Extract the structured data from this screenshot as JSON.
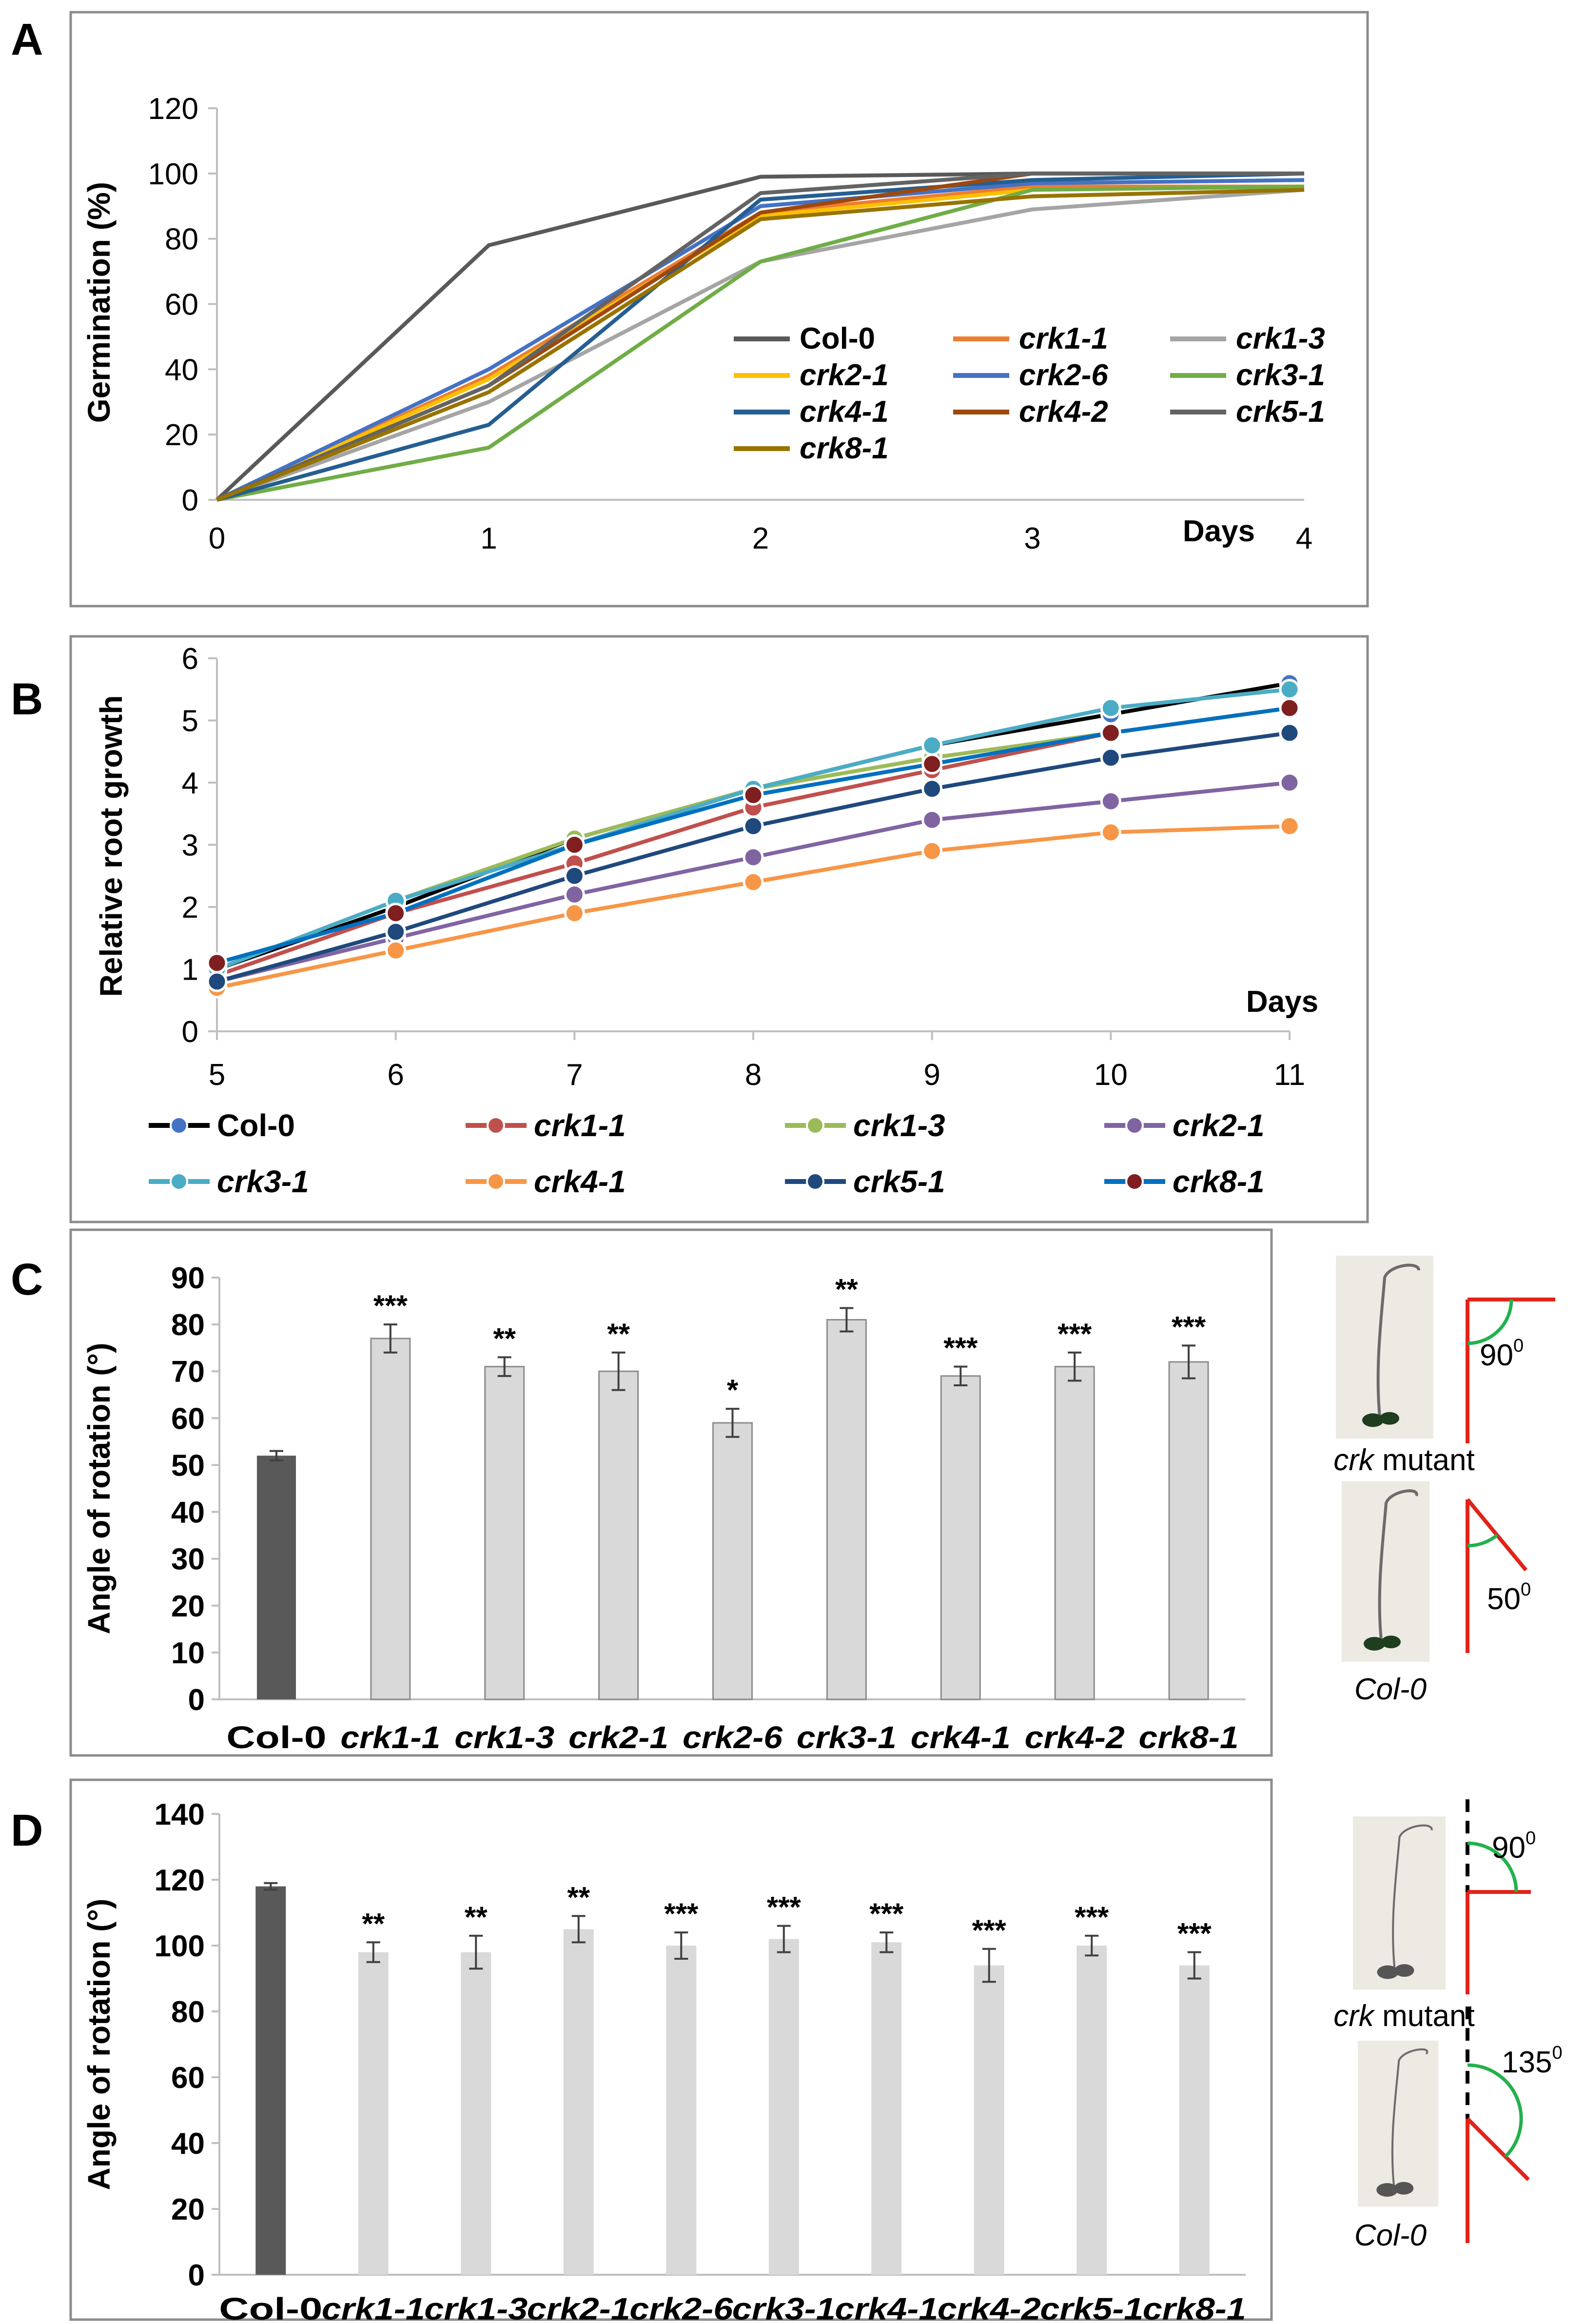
{
  "figure": {
    "panels": [
      "A",
      "B",
      "C",
      "D"
    ]
  },
  "colors": {
    "panel_border": "#8c8c8c",
    "axis": "#bfbfbf",
    "dark_bar": "#595959",
    "light_bar": "#d9d9d9",
    "red_line": "#e2231a",
    "green_arc": "#22b14c",
    "seedling_bg": "#ede9e3"
  },
  "chart_data": [
    {
      "panel": "A",
      "type": "line",
      "ylabel": "Germination (%)",
      "xlabel": "Days",
      "xlim": [
        0,
        4
      ],
      "ylim": [
        0,
        120
      ],
      "x_ticks": [
        "0",
        "1",
        "2",
        "3",
        "4"
      ],
      "y_ticks": [
        "0",
        "20",
        "40",
        "60",
        "80",
        "100",
        "120"
      ],
      "x": [
        0,
        1,
        2,
        3,
        4
      ],
      "legend_position": "inside-lower-right",
      "series": [
        {
          "name": "Col-0",
          "color": "#595959",
          "values": [
            0,
            78,
            99,
            100,
            100
          ]
        },
        {
          "name": "crk1-1",
          "color": "#ed7d31",
          "values": [
            0,
            38,
            88,
            96,
            96
          ]
        },
        {
          "name": "crk1-3",
          "color": "#a5a5a5",
          "values": [
            0,
            30,
            73,
            89,
            95
          ]
        },
        {
          "name": "crk2-1",
          "color": "#ffc000",
          "values": [
            0,
            37,
            87,
            95,
            96
          ]
        },
        {
          "name": "crk2-6",
          "color": "#4472c4",
          "values": [
            0,
            40,
            90,
            97,
            98
          ]
        },
        {
          "name": "crk3-1",
          "color": "#70ad47",
          "values": [
            0,
            16,
            73,
            95,
            96
          ]
        },
        {
          "name": "crk4-1",
          "color": "#255e91",
          "values": [
            0,
            23,
            92,
            98,
            100
          ]
        },
        {
          "name": "crk4-2",
          "color": "#9e480e",
          "values": [
            0,
            35,
            88,
            100,
            100
          ]
        },
        {
          "name": "crk5-1",
          "color": "#636363",
          "values": [
            0,
            35,
            94,
            100,
            100
          ]
        },
        {
          "name": "crk8-1",
          "color": "#997300",
          "values": [
            0,
            33,
            86,
            93,
            95
          ]
        }
      ]
    },
    {
      "panel": "B",
      "type": "line",
      "ylabel": "Relative root growth",
      "xlabel": "Days",
      "xlim": [
        5,
        11
      ],
      "ylim": [
        0,
        6
      ],
      "x_ticks": [
        "5",
        "6",
        "7",
        "8",
        "9",
        "10",
        "11"
      ],
      "y_ticks": [
        "0",
        "1",
        "2",
        "3",
        "4",
        "5",
        "6"
      ],
      "x": [
        5,
        6,
        7,
        8,
        9,
        10,
        11
      ],
      "legend_position": "bottom",
      "series": [
        {
          "name": "Col-0",
          "color": "#000000",
          "marker": "#4472c4",
          "values": [
            1.0,
            2.0,
            3.1,
            3.9,
            4.6,
            5.1,
            5.6
          ]
        },
        {
          "name": "crk1-1",
          "color": "#c0504d",
          "marker": "#c0504d",
          "values": [
            0.9,
            1.9,
            2.7,
            3.6,
            4.2,
            4.8,
            5.2
          ]
        },
        {
          "name": "crk1-3",
          "color": "#9bbb59",
          "marker": "#9bbb59",
          "values": [
            1.0,
            2.1,
            3.1,
            3.9,
            4.4,
            4.8,
            5.2
          ]
        },
        {
          "name": "crk2-1",
          "color": "#8064a2",
          "marker": "#8064a2",
          "values": [
            0.8,
            1.5,
            2.2,
            2.8,
            3.4,
            3.7,
            4.0
          ]
        },
        {
          "name": "crk3-1",
          "color": "#4bacc6",
          "marker": "#4bacc6",
          "values": [
            1.0,
            2.1,
            3.0,
            3.9,
            4.6,
            5.2,
            5.5
          ]
        },
        {
          "name": "crk4-1",
          "color": "#f79646",
          "marker": "#f79646",
          "values": [
            0.7,
            1.3,
            1.9,
            2.4,
            2.9,
            3.2,
            3.3
          ]
        },
        {
          "name": "crk5-1",
          "color": "#1f497d",
          "marker": "#1f497d",
          "values": [
            0.8,
            1.6,
            2.5,
            3.3,
            3.9,
            4.4,
            4.8
          ]
        },
        {
          "name": "crk8-1",
          "color": "#0070c0",
          "marker": "#7f1f1f",
          "values": [
            1.1,
            1.9,
            3.0,
            3.8,
            4.3,
            4.8,
            5.2
          ]
        }
      ]
    },
    {
      "panel": "C",
      "type": "bar",
      "ylabel": "Angle of rotation (°)",
      "ylim": [
        0,
        90
      ],
      "y_ticks": [
        "0",
        "10",
        "20",
        "30",
        "40",
        "50",
        "60",
        "70",
        "80",
        "90"
      ],
      "categories": [
        "Col-0",
        "crk1-1",
        "crk1-3",
        "crk2-1",
        "crk2-6",
        "crk3-1",
        "crk4-1",
        "crk4-2",
        "crk8-1"
      ],
      "values": [
        52,
        77,
        71,
        70,
        59,
        81,
        69,
        71,
        72
      ],
      "errors": [
        1,
        3,
        2,
        4,
        3,
        2.5,
        2,
        3,
        3.5
      ],
      "significance": [
        "",
        "***",
        "**",
        "**",
        "*",
        "**",
        "***",
        "***",
        "***"
      ],
      "inset": {
        "mutant_label_italic": "crk",
        "mutant_label_rest": " mutant",
        "wt_label": "Col-0",
        "mutant_angle": "90",
        "wt_angle": "50",
        "degree_mark": "0"
      }
    },
    {
      "panel": "D",
      "type": "bar",
      "ylabel": "Angle of rotation (°)",
      "ylim": [
        0,
        140
      ],
      "y_ticks": [
        "0",
        "20",
        "40",
        "60",
        "80",
        "100",
        "120",
        "140"
      ],
      "categories": [
        "Col-0",
        "crk1-1",
        "crk1-3",
        "crk2-1",
        "crk2-6",
        "crk3-1",
        "crk4-1",
        "crk4-2",
        "crk5-1",
        "crk8-1"
      ],
      "values": [
        118,
        98,
        98,
        105,
        100,
        102,
        101,
        94,
        100,
        94
      ],
      "errors": [
        1,
        3,
        5,
        4,
        4,
        4,
        3,
        5,
        3,
        4
      ],
      "significance": [
        "",
        "**",
        "**",
        "**",
        "***",
        "***",
        "***",
        "***",
        "***",
        "***"
      ],
      "inset": {
        "mutant_label_italic": "crk",
        "mutant_label_rest": " mutant",
        "wt_label": "Col-0",
        "mutant_angle": "90",
        "wt_angle": "135",
        "degree_mark": "0"
      }
    }
  ]
}
